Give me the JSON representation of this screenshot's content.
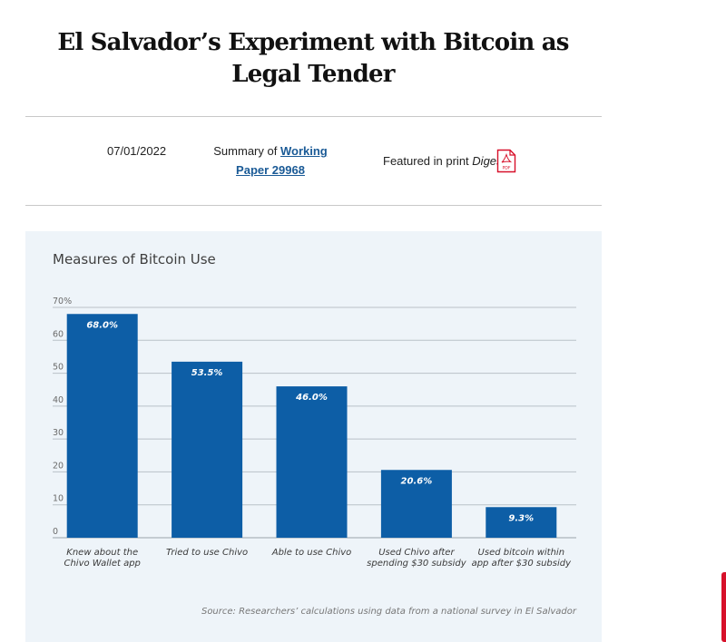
{
  "article": {
    "title": "El Salvador’s Experiment with Bitcoin as Legal Tender",
    "date": "07/01/2022",
    "summary_prefix": "Summary of",
    "working_paper_link": "Working Paper 29968",
    "featured_prefix": "Featured in print",
    "digest_label": "Digest",
    "pdf_icon": "pdf-icon",
    "pdf_badge": "PDF",
    "accent_color": "#d7102a"
  },
  "chart_data": {
    "type": "bar",
    "title": "Measures of Bitcoin Use",
    "categories": [
      [
        "Knew about the",
        "Chivo Wallet app"
      ],
      [
        "Tried to use Chivo"
      ],
      [
        "Able to use Chivo"
      ],
      [
        "Used Chivo after",
        "spending $30 subsidy"
      ],
      [
        "Used bitcoin within",
        "app after $30 subsidy"
      ]
    ],
    "values": [
      68.0,
      53.5,
      46.0,
      20.6,
      9.3
    ],
    "value_labels": [
      "68.0%",
      "53.5%",
      "46.0%",
      "20.6%",
      "9.3%"
    ],
    "ylim": [
      0,
      70
    ],
    "yticks": [
      0,
      10,
      20,
      30,
      40,
      50,
      60,
      70
    ],
    "ytick_labels": [
      "0",
      "10",
      "20",
      "30",
      "40",
      "50",
      "60",
      "70%"
    ],
    "grid": true,
    "bar_color": "#0d5ea6",
    "source": "Source: Researchers’ calculations using data from a national survey in El Salvador"
  }
}
